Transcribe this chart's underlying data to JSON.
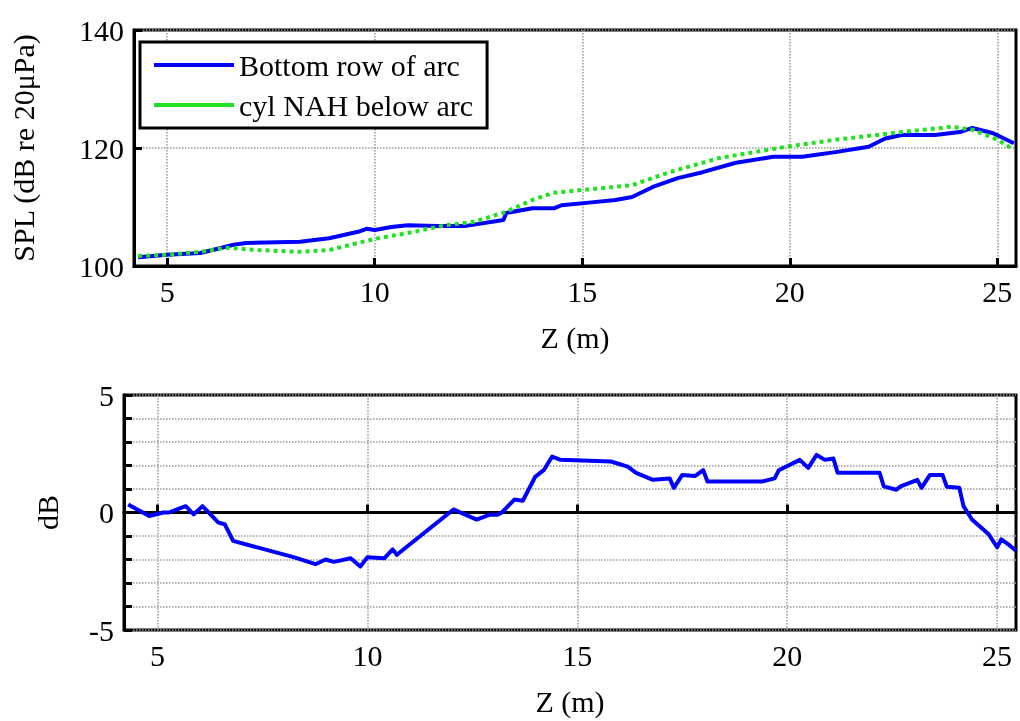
{
  "chart_data": [
    {
      "type": "line",
      "xlabel": "Z (m)",
      "ylabel": "SPL (dB re 20μPa)",
      "xlim": [
        4.2,
        25.45
      ],
      "xticks": [
        5,
        10,
        15,
        20,
        25
      ],
      "ylim": [
        100,
        140
      ],
      "yticks": [
        100,
        120,
        140
      ],
      "grid": true,
      "legend": "top left",
      "series": [
        {
          "name": "Bottom row of arc",
          "color": "#0000ff",
          "line_style": "solid",
          "x": [
            4.3,
            5,
            5.8,
            6.6,
            6.9,
            8.2,
            8.9,
            9.6,
            9.8,
            10,
            10.4,
            10.8,
            11.5,
            12.2,
            13.1,
            13.17,
            13.8,
            14.33,
            14.5,
            15.1,
            15.8,
            16.2,
            16.7,
            17.3,
            17.9,
            18.7,
            19.6,
            20.3,
            20.6,
            21.1,
            21.9,
            22.3,
            22.7,
            23.5,
            24.1,
            24.4,
            24.9,
            25.4
          ],
          "values": [
            101.5,
            101.9,
            102.2,
            103.6,
            103.9,
            104.1,
            104.7,
            105.8,
            106.3,
            106.1,
            106.6,
            106.9,
            106.8,
            106.8,
            107.8,
            109.0,
            109.8,
            109.8,
            110.3,
            110.7,
            111.2,
            111.7,
            113.4,
            114.9,
            115.9,
            117.5,
            118.5,
            118.5,
            118.8,
            119.3,
            120.2,
            121.6,
            122.2,
            122.2,
            122.7,
            123.4,
            122.5,
            120.8
          ]
        },
        {
          "name": "cyl NAH below arc",
          "color": "#22e022",
          "line_style": "dotted",
          "x": [
            4.3,
            5,
            5.8,
            6.4,
            7.2,
            8.2,
            8.9,
            10,
            10.8,
            11.7,
            12.4,
            13.17,
            13.8,
            14.3,
            16.2,
            17.1,
            18.3,
            19.9,
            21.1,
            22.7,
            23.9,
            24.4,
            25,
            25.4
          ],
          "values": [
            101.7,
            101.9,
            102.4,
            103.1,
            102.7,
            102.4,
            102.7,
            104.6,
            105.6,
            106.9,
            107.5,
            109.2,
            111.2,
            112.4,
            113.7,
            115.9,
            118.3,
            120.2,
            121.4,
            122.7,
            123.6,
            123.1,
            121.4,
            119.7
          ]
        }
      ]
    },
    {
      "type": "line",
      "xlabel": "Z (m)",
      "ylabel": "dB",
      "xlim": [
        4.2,
        25.45
      ],
      "xticks": [
        5,
        10,
        15,
        20,
        25
      ],
      "ylim": [
        -5,
        5
      ],
      "yticks": [
        -5,
        {
          "value": -4,
          "label": null
        },
        {
          "value": -3,
          "label": null
        },
        {
          "value": -2,
          "label": null
        },
        {
          "value": -1,
          "label": null
        },
        0,
        {
          "value": 1,
          "label": null
        },
        {
          "value": 2,
          "label": null
        },
        {
          "value": 3,
          "label": null
        },
        {
          "value": 4,
          "label": null
        },
        5
      ],
      "grid": true,
      "series": [
        {
          "color": "#0000ff",
          "line_style": "solid",
          "x": [
            4.3,
            4.8,
            5.14,
            5.27,
            5.67,
            5.86,
            6.07,
            6.45,
            6.6,
            6.8,
            8.24,
            8.76,
            9.0,
            9.2,
            9.6,
            9.83,
            10.0,
            10.4,
            10.6,
            10.7,
            12.05,
            12.6,
            12.9,
            13.1,
            13.2,
            13.5,
            13.7,
            14.0,
            14.2,
            14.4,
            14.6,
            15.8,
            16.2,
            16.4,
            16.8,
            17.2,
            17.3,
            17.5,
            17.8,
            18.0,
            18.1,
            19.4,
            19.7,
            19.8,
            20.3,
            20.5,
            20.7,
            20.9,
            21.1,
            21.2,
            22.2,
            22.3,
            22.6,
            22.7,
            23.1,
            23.2,
            23.4,
            23.7,
            23.8,
            24.1,
            24.2,
            24.4,
            24.8,
            25.0,
            25.1,
            25.3,
            25.45
          ],
          "values": [
            0.34,
            -0.15,
            0.0,
            0.0,
            0.27,
            -0.08,
            0.27,
            -0.43,
            -0.5,
            -1.21,
            -1.9,
            -2.2,
            -2.0,
            -2.1,
            -1.95,
            -2.3,
            -1.9,
            -1.95,
            -1.57,
            -1.8,
            0.13,
            -0.3,
            -0.1,
            -0.1,
            0.0,
            0.55,
            0.5,
            1.53,
            1.8,
            2.38,
            2.24,
            2.17,
            1.95,
            1.69,
            1.39,
            1.45,
            1.05,
            1.6,
            1.55,
            1.8,
            1.32,
            1.32,
            1.45,
            1.8,
            2.24,
            1.9,
            2.45,
            2.24,
            2.3,
            1.69,
            1.69,
            1.11,
            0.97,
            1.11,
            1.39,
            1.05,
            1.6,
            1.6,
            1.1,
            1.05,
            0.27,
            -0.3,
            -0.93,
            -1.48,
            -1.14,
            -1.4,
            -1.63
          ]
        }
      ]
    }
  ]
}
